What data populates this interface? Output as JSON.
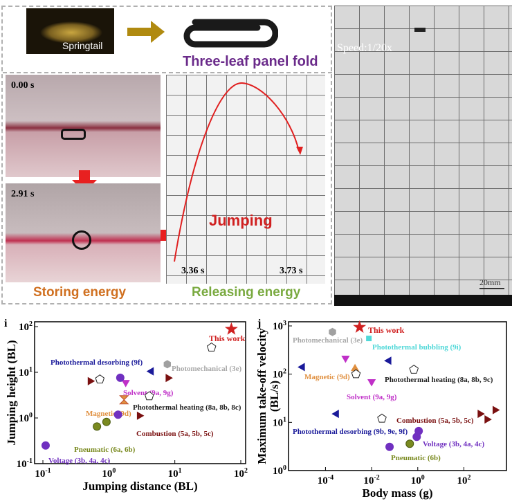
{
  "top_panel": {
    "springtail_label": "Springtail",
    "fold_label": "Three-leaf panel fold",
    "time_1": "0.00 s",
    "time_2": "2.91 s",
    "jumping_label": "Jumping",
    "time_start": "3.36 s",
    "time_end": "3.73 s",
    "storing_label": "Storing energy",
    "releasing_label": "Releasing energy",
    "speed_label": "Speed:1/20x",
    "scale_label": "20mm",
    "colors": {
      "fold_text": "#6a2a8a",
      "storing": "#d07020",
      "releasing": "#7aaa40",
      "arrow": "#e02020",
      "jumping": "#d02020",
      "gold_arrow": "#b08a10"
    }
  },
  "chart_data": [
    {
      "type": "scatter",
      "panel_label": "i",
      "xlabel": "Jumping distance (BL)",
      "ylabel": "Jumping height (BL)",
      "xscale": "log",
      "yscale": "log",
      "xlim": [
        0.1,
        100
      ],
      "ylim": [
        0.1,
        100
      ],
      "xticks": [
        "10-1",
        "100",
        "101",
        "102"
      ],
      "yticks": [
        "10-1",
        "100",
        "101",
        "102"
      ],
      "grid": false,
      "series": [
        {
          "name": "This work",
          "color": "#d02020",
          "marker": "star",
          "points": [
            [
              72,
              88
            ]
          ]
        },
        {
          "name": "Photothermal desorbing (9f)",
          "color": "#1a1a9a",
          "marker": "tri-left",
          "points": [
            [
              4.4,
              10.5
            ]
          ]
        },
        {
          "name": "Photomechanical (3e)",
          "color": "#a0a0a0",
          "marker": "hexagon",
          "points": [
            [
              7.7,
              15
            ]
          ]
        },
        {
          "name": "Solvent (9a, 9g)",
          "color": "#c030c8",
          "marker": "tri-down",
          "points": [
            [
              1.8,
              6
            ]
          ]
        },
        {
          "name": "Photothermal heating (8a, 8b, 8c)",
          "color": "#222222",
          "marker": "pentagon",
          "points": [
            [
              36,
              35
            ],
            [
              0.73,
              7
            ],
            [
              4.1,
              3.0
            ]
          ]
        },
        {
          "name": "Magnetic (9d)",
          "color": "#e09040",
          "marker": "hourglass",
          "points": [
            [
              1.7,
              2.5
            ]
          ]
        },
        {
          "name": "Combustion (5a, 5b, 5c)",
          "color": "#7a1010",
          "marker": "tri-right",
          "points": [
            [
              7.9,
              7.5
            ],
            [
              0.52,
              6.4
            ],
            [
              2.9,
              1.12
            ]
          ]
        },
        {
          "name": "Pneumatic (6a, 6b)",
          "color": "#7a8a20",
          "marker": "sphere",
          "points": [
            [
              0.66,
              0.65
            ],
            [
              0.92,
              0.82
            ]
          ]
        },
        {
          "name": "Voltage (3b, 4a, 4c)",
          "color": "#7030c0",
          "marker": "circle",
          "points": [
            [
              0.11,
              0.25
            ],
            [
              1.49,
              7.6
            ],
            [
              1.38,
              1.18
            ]
          ]
        }
      ]
    },
    {
      "type": "scatter",
      "panel_label": "j",
      "xlabel": "Body mass (g)",
      "ylabel": [
        "Maximum take-off velocity",
        "(BL/s)"
      ],
      "xscale": "log",
      "yscale": "log",
      "xlim": [
        2.5e-06,
        7000
      ],
      "ylim": [
        1,
        1000
      ],
      "xticks": [
        "10-4",
        "10-2",
        "100",
        "102"
      ],
      "yticks": [
        "100",
        "101",
        "102",
        "103"
      ],
      "grid": false,
      "series": [
        {
          "name": "This work",
          "color": "#d02020",
          "marker": "star",
          "points": [
            [
              0.003,
              940
            ]
          ]
        },
        {
          "name": "Photomechanical (3e)",
          "color": "#a0a0a0",
          "marker": "hexagon",
          "points": [
            [
              0.0002,
              750
            ]
          ]
        },
        {
          "name": "Photothermal bubbling (9i)",
          "color": "#50d8d8",
          "marker": "square",
          "points": [
            [
              0.0076,
              550
            ]
          ]
        },
        {
          "name": "Magnetic (9d)",
          "color": "#e09040",
          "marker": "tri-up",
          "points": [
            [
              0.0019,
              130
            ]
          ]
        },
        {
          "name": "Photothermal heating (8a, 8b, 9c)",
          "color": "#222222",
          "marker": "pentagon",
          "points": [
            [
              0.0021,
              100
            ],
            [
              0.68,
              124
            ],
            [
              0.028,
              12
            ]
          ]
        },
        {
          "name": "Solvent (9a, 9g)",
          "color": "#c030c8",
          "marker": "tri-down",
          "points": [
            [
              0.00074,
              215
            ],
            [
              0.01,
              70
            ]
          ]
        },
        {
          "name": "Combustion (5a, 5b, 5c)",
          "color": "#7a1010",
          "marker": "tri-right",
          "points": [
            [
              500,
              15
            ],
            [
              1000,
              11.5
            ],
            [
              2240,
              18
            ]
          ]
        },
        {
          "name": "Photothermal desorbing (9b, 9e, 9f)",
          "color": "#1a1a9a",
          "marker": "tri-left",
          "points": [
            [
              1e-05,
              140
            ],
            [
              0.056,
              190
            ],
            [
              0.0003,
              15
            ]
          ]
        },
        {
          "name": "Voltage (3b, 4a, 4c)",
          "color": "#7030c0",
          "marker": "circle",
          "points": [
            [
              1.1,
              6.6
            ],
            [
              0.9,
              5
            ],
            [
              0.06,
              3.1
            ]
          ]
        },
        {
          "name": "Pneumatic (6b)",
          "color": "#7a8a20",
          "marker": "sphere",
          "points": [
            [
              0.45,
              3.6
            ]
          ]
        }
      ]
    }
  ]
}
